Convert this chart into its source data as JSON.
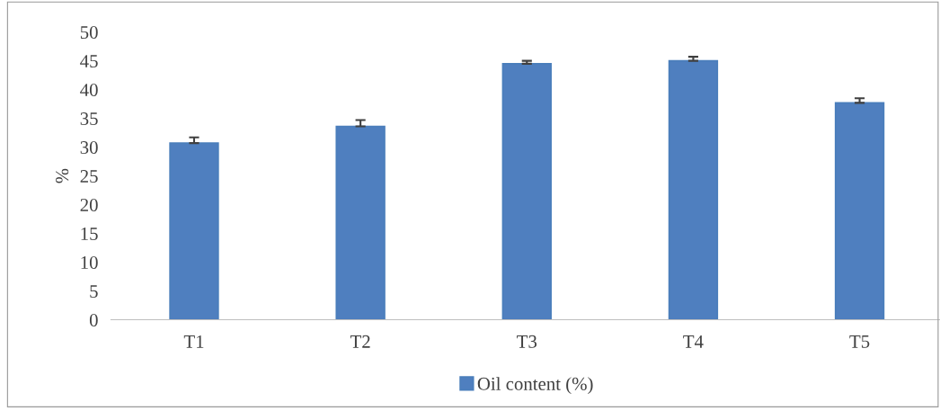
{
  "chart_data": {
    "type": "bar",
    "ylabel": "%",
    "categories": [
      "T1",
      "T2",
      "T3",
      "T4",
      "T5"
    ],
    "series": [
      {
        "name": "Oil content (%)",
        "color": "#4f7fbf",
        "values": [
          30.7,
          33.6,
          44.5,
          45.0,
          37.7
        ],
        "errors": [
          [
            30.7,
            31.7
          ],
          [
            33.6,
            34.7
          ],
          [
            44.5,
            45.0
          ],
          [
            45.0,
            45.7
          ],
          [
            37.7,
            38.5
          ]
        ]
      }
    ],
    "ylim": [
      0,
      50
    ],
    "yticks": [
      0,
      5,
      10,
      15,
      20,
      25,
      30,
      35,
      40,
      45,
      50
    ],
    "grid": false,
    "legend": "bottom"
  }
}
